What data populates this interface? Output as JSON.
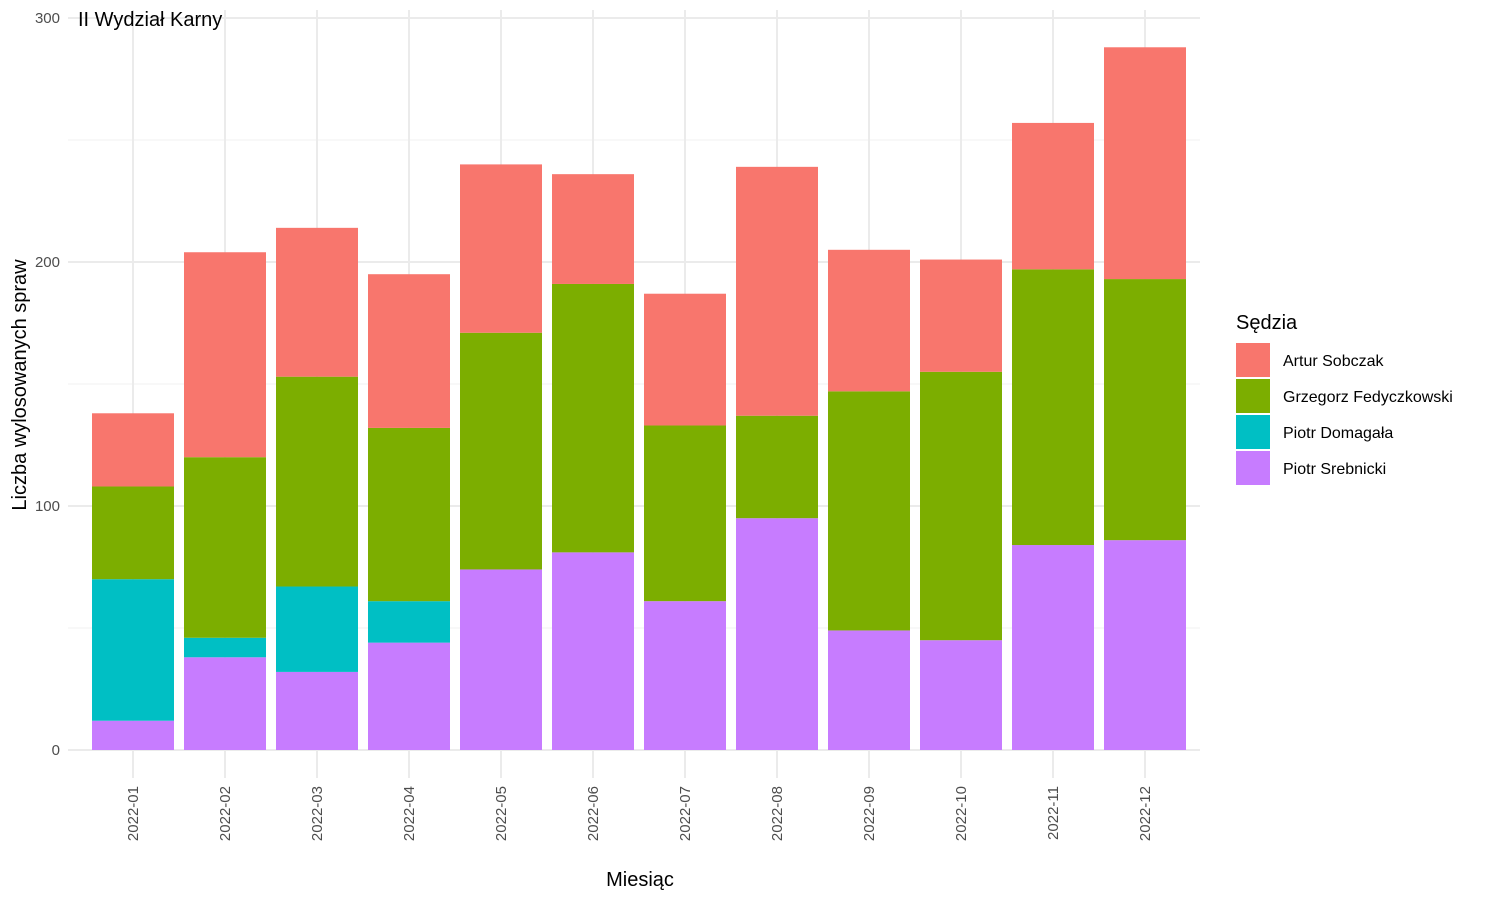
{
  "chart_data": {
    "type": "bar",
    "stacked": true,
    "title": "II Wydział Karny",
    "xlabel": "Miesiąc",
    "ylabel": "Liczba wylosowanych spraw",
    "ylim": [
      -12,
      300
    ],
    "yticks": [
      0,
      100,
      200,
      300
    ],
    "grid": true,
    "legend": {
      "title": "Sędzia",
      "position": "right"
    },
    "categories": [
      "2022-01",
      "2022-02",
      "2022-03",
      "2022-04",
      "2022-05",
      "2022-06",
      "2022-07",
      "2022-08",
      "2022-09",
      "2022-10",
      "2022-11",
      "2022-12"
    ],
    "series": [
      {
        "name": "Piotr Srebnicki",
        "color": "#C77CFF",
        "values": [
          12,
          38,
          32,
          44,
          74,
          81,
          61,
          95,
          49,
          45,
          84,
          86
        ]
      },
      {
        "name": "Piotr Domagała",
        "color": "#00BFC4",
        "values": [
          58,
          8,
          35,
          17,
          0,
          0,
          0,
          0,
          0,
          0,
          0,
          0
        ]
      },
      {
        "name": "Grzegorz Fedyczkowski",
        "color": "#7CAE00",
        "values": [
          38,
          74,
          86,
          71,
          97,
          110,
          72,
          42,
          98,
          110,
          113,
          107
        ]
      },
      {
        "name": "Artur Sobczak",
        "color": "#F8766D",
        "values": [
          30,
          84,
          61,
          63,
          69,
          45,
          54,
          102,
          58,
          46,
          60,
          95
        ]
      }
    ],
    "legend_order": [
      "Artur Sobczak",
      "Grzegorz Fedyczkowski",
      "Piotr Domagała",
      "Piotr Srebnicki"
    ]
  }
}
